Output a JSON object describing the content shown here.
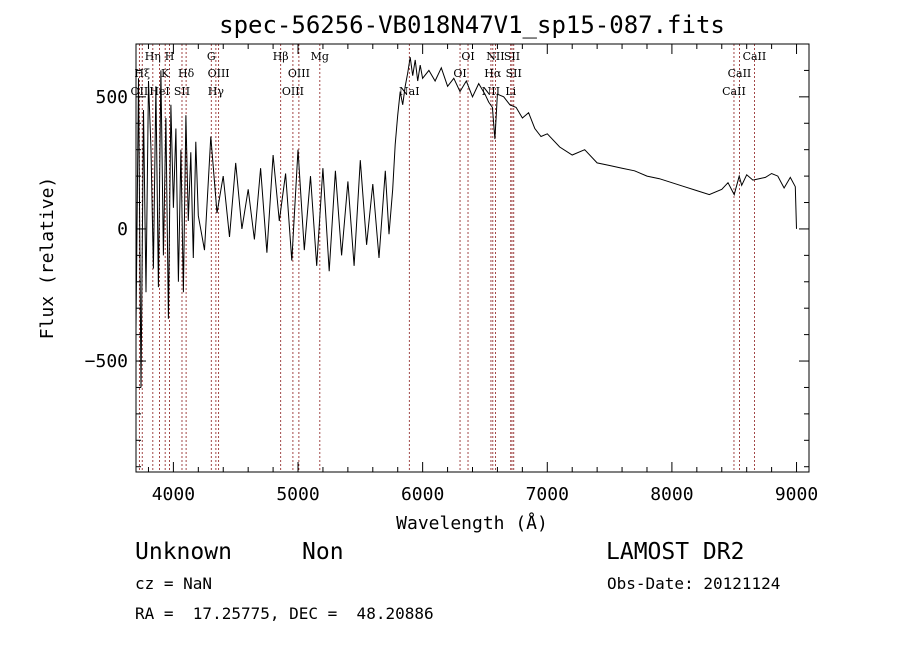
{
  "chart_data": {
    "type": "line",
    "title": "spec-56256-VB018N47V1_sp15-087.fits",
    "xlabel": "Wavelength (Å)",
    "ylabel": "Flux (relative)",
    "xlim": [
      3700,
      9100
    ],
    "ylim": [
      -920,
      700
    ],
    "xticks": [
      4000,
      5000,
      6000,
      7000,
      8000,
      9000
    ],
    "yticks": [
      -500,
      0,
      500
    ],
    "line_color": "#000000",
    "marker_color": "#8b1a1a",
    "spectral_lines": [
      {
        "label": "Hη",
        "wavelength": 3835,
        "row": 0
      },
      {
        "label": "H",
        "wavelength": 3969,
        "row": 0
      },
      {
        "label": "Hξ",
        "wavelength": 3750,
        "row": 1
      },
      {
        "label": "K",
        "wavelength": 3934,
        "row": 1
      },
      {
        "label": "Hδ",
        "wavelength": 4102,
        "row": 1
      },
      {
        "label": "OII",
        "wavelength": 3727,
        "row": 2
      },
      {
        "label": "HeI",
        "wavelength": 3889,
        "row": 2
      },
      {
        "label": "SII",
        "wavelength": 4069,
        "row": 2
      },
      {
        "label": "G",
        "wavelength": 4304,
        "row": 0
      },
      {
        "label": "OIII",
        "wavelength": 4363,
        "row": 1
      },
      {
        "label": "Hγ",
        "wavelength": 4341,
        "row": 2
      },
      {
        "label": "Hβ",
        "wavelength": 4861,
        "row": 0
      },
      {
        "label": "OIII",
        "wavelength": 5007,
        "row": 1
      },
      {
        "label": "OIII",
        "wavelength": 4959,
        "row": 2
      },
      {
        "label": "Mg",
        "wavelength": 5175,
        "row": 0
      },
      {
        "label": "NaI",
        "wavelength": 5893,
        "row": 2
      },
      {
        "label": "OI",
        "wavelength": 6364,
        "row": 0
      },
      {
        "label": "OI",
        "wavelength": 6300,
        "row": 1
      },
      {
        "label": "NII",
        "wavelength": 6584,
        "row": 0
      },
      {
        "label": "Hα",
        "wavelength": 6563,
        "row": 1
      },
      {
        "label": "NII",
        "wavelength": 6548,
        "row": 2
      },
      {
        "label": "SII",
        "wavelength": 6717,
        "row": 0
      },
      {
        "label": "SII",
        "wavelength": 6731,
        "row": 1
      },
      {
        "label": "Li",
        "wavelength": 6707,
        "row": 2
      },
      {
        "label": "CaII",
        "wavelength": 8662,
        "row": 0
      },
      {
        "label": "CaII",
        "wavelength": 8542,
        "row": 1
      },
      {
        "label": "CaII",
        "wavelength": 8498,
        "row": 2
      }
    ],
    "series": [
      {
        "x": [
          3700,
          3720,
          3740,
          3760,
          3780,
          3800,
          3820,
          3840,
          3860,
          3880,
          3900,
          3920,
          3940,
          3960,
          3980,
          4000,
          4020,
          4040,
          4060,
          4080,
          4100,
          4120,
          4140,
          4160,
          4180,
          4200,
          4250,
          4300,
          4350,
          4400,
          4450,
          4500,
          4550,
          4600,
          4650,
          4700,
          4750,
          4800,
          4850,
          4900,
          4950,
          5000,
          5050,
          5100,
          5150,
          5200,
          5250,
          5300,
          5350,
          5400,
          5450,
          5500,
          5550,
          5600,
          5650,
          5700,
          5730,
          5760,
          5780,
          5800,
          5820,
          5840,
          5860,
          5880,
          5900,
          5920,
          5940,
          5960,
          5980,
          6000,
          6050,
          6100,
          6150,
          6200,
          6250,
          6300,
          6350,
          6400,
          6450,
          6500,
          6530,
          6560,
          6580,
          6600,
          6650,
          6700,
          6750,
          6800,
          6850,
          6900,
          6950,
          7000,
          7100,
          7200,
          7300,
          7400,
          7500,
          7600,
          7700,
          7800,
          7900,
          8000,
          8100,
          8200,
          8300,
          8400,
          8450,
          8500,
          8540,
          8560,
          8600,
          8650,
          8700,
          8750,
          8800,
          8850,
          8900,
          8950,
          8990,
          9000
        ],
        "y": [
          -380,
          570,
          -600,
          450,
          -240,
          560,
          300,
          -150,
          540,
          -220,
          600,
          -100,
          420,
          -340,
          470,
          80,
          380,
          -200,
          300,
          -240,
          430,
          30,
          290,
          -110,
          330,
          50,
          -80,
          350,
          60,
          200,
          -30,
          250,
          0,
          150,
          -40,
          230,
          -90,
          280,
          30,
          210,
          -120,
          300,
          -80,
          200,
          -140,
          230,
          -160,
          220,
          -100,
          180,
          -140,
          260,
          -60,
          170,
          -110,
          220,
          -20,
          150,
          320,
          430,
          520,
          470,
          540,
          590,
          650,
          580,
          640,
          560,
          620,
          570,
          600,
          560,
          610,
          540,
          570,
          520,
          560,
          500,
          550,
          510,
          480,
          460,
          340,
          510,
          500,
          470,
          460,
          420,
          440,
          380,
          350,
          360,
          310,
          280,
          300,
          250,
          240,
          230,
          220,
          200,
          190,
          175,
          160,
          145,
          130,
          150,
          175,
          130,
          200,
          165,
          205,
          185,
          190,
          195,
          210,
          200,
          155,
          195,
          160,
          0
        ]
      }
    ]
  },
  "info": {
    "class": "Unknown",
    "subclass": "Non",
    "survey": "LAMOST DR2",
    "cz": "cz = NaN",
    "obs_date": "Obs-Date: 20121124",
    "coords": "RA =  17.25775, DEC =  48.20886"
  }
}
